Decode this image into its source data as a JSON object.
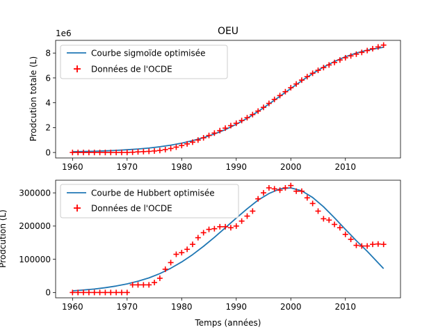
{
  "chart_data": [
    {
      "type": "line",
      "title": "OEU",
      "ylabel": "Prodcution totale (L)",
      "xlabel": "",
      "y_offset_text": "1e6",
      "xlim": [
        1956.9,
        2020.1
      ],
      "ylim": [
        -0.44,
        9.02
      ],
      "x_ticks": [
        1960,
        1970,
        1980,
        1990,
        2000,
        2010
      ],
      "y_ticks": [
        0,
        2,
        4,
        6,
        8
      ],
      "legend": {
        "placement": "top-left",
        "entries": [
          "Courbe sigmoïde optimisée",
          "Données de l'OCDE"
        ]
      },
      "colors": {
        "curve": "#1f77b4",
        "data": "#ff0000"
      },
      "series": [
        {
          "name": "Courbe sigmoïde optimisée",
          "kind": "line",
          "x": [
            1960,
            1962,
            1964,
            1966,
            1968,
            1970,
            1972,
            1974,
            1976,
            1978,
            1980,
            1982,
            1984,
            1986,
            1988,
            1990,
            1992,
            1994,
            1996,
            1998,
            2000,
            2002,
            2004,
            2006,
            2008,
            2010,
            2012,
            2014,
            2017
          ],
          "y": [
            0.06,
            0.08,
            0.1,
            0.13,
            0.17,
            0.22,
            0.28,
            0.36,
            0.46,
            0.59,
            0.75,
            0.95,
            1.19,
            1.49,
            1.84,
            2.27,
            2.75,
            3.3,
            3.9,
            4.52,
            5.15,
            5.77,
            6.35,
            6.87,
            7.32,
            7.7,
            8.0,
            8.23,
            8.47
          ]
        },
        {
          "name": "Données de l'OCDE",
          "kind": "scatter",
          "x": [
            1960,
            1961,
            1962,
            1963,
            1964,
            1965,
            1966,
            1967,
            1968,
            1969,
            1970,
            1971,
            1972,
            1973,
            1974,
            1975,
            1976,
            1977,
            1978,
            1979,
            1980,
            1981,
            1982,
            1983,
            1984,
            1985,
            1986,
            1987,
            1988,
            1989,
            1990,
            1991,
            1992,
            1993,
            1994,
            1995,
            1996,
            1997,
            1998,
            1999,
            2000,
            2001,
            2002,
            2003,
            2004,
            2005,
            2006,
            2007,
            2008,
            2009,
            2010,
            2011,
            2012,
            2013,
            2014,
            2015,
            2016,
            2017
          ],
          "y": [
            0,
            0,
            0,
            0,
            0,
            0,
            0,
            0,
            0,
            0,
            0,
            0.02,
            0.05,
            0.07,
            0.09,
            0.12,
            0.16,
            0.23,
            0.32,
            0.43,
            0.56,
            0.69,
            0.83,
            1.0,
            1.18,
            1.37,
            1.56,
            1.76,
            1.96,
            2.16,
            2.35,
            2.57,
            2.8,
            3.05,
            3.33,
            3.63,
            3.95,
            4.27,
            4.58,
            4.89,
            5.21,
            5.51,
            5.82,
            6.1,
            6.37,
            6.61,
            6.83,
            7.04,
            7.24,
            7.44,
            7.62,
            7.77,
            7.91,
            8.05,
            8.2,
            8.35,
            8.49,
            8.64
          ]
        }
      ]
    },
    {
      "type": "line",
      "title": "",
      "ylabel": "Prodcution (L)",
      "xlabel": "Temps (années)",
      "xlim": [
        1956.9,
        2020.1
      ],
      "ylim": [
        -16000,
        338000
      ],
      "x_ticks": [
        1960,
        1970,
        1980,
        1990,
        2000,
        2010
      ],
      "y_ticks": [
        0,
        100000,
        200000,
        300000
      ],
      "legend": {
        "placement": "top-left",
        "entries": [
          "Courbe de Hubbert optimisée",
          "Données de l'OCDE"
        ]
      },
      "colors": {
        "curve": "#1f77b4",
        "data": "#ff0000"
      },
      "series": [
        {
          "name": "Courbe de Hubbert optimisée",
          "kind": "line",
          "x": [
            1960,
            1962,
            1964,
            1966,
            1968,
            1970,
            1972,
            1974,
            1976,
            1978,
            1980,
            1982,
            1984,
            1986,
            1988,
            1990,
            1992,
            1994,
            1996,
            1998,
            2000,
            2002,
            2004,
            2006,
            2008,
            2010,
            2012,
            2014,
            2017
          ],
          "y": [
            5000,
            7500,
            10500,
            14500,
            19500,
            26000,
            34000,
            44000,
            57000,
            73000,
            92000,
            114000,
            139000,
            166000,
            195000,
            224000,
            252000,
            278000,
            298000,
            312000,
            315000,
            306000,
            286000,
            258000,
            225000,
            190000,
            156000,
            124000,
            72000
          ]
        },
        {
          "name": "Données de l'OCDE",
          "kind": "scatter",
          "x": [
            1960,
            1961,
            1962,
            1963,
            1964,
            1965,
            1966,
            1967,
            1968,
            1969,
            1970,
            1971,
            1972,
            1973,
            1974,
            1975,
            1976,
            1977,
            1978,
            1979,
            1980,
            1981,
            1982,
            1983,
            1984,
            1985,
            1986,
            1987,
            1988,
            1989,
            1990,
            1991,
            1992,
            1993,
            1994,
            1995,
            1996,
            1997,
            1998,
            1999,
            2000,
            2001,
            2002,
            2003,
            2004,
            2005,
            2006,
            2007,
            2008,
            2009,
            2010,
            2011,
            2012,
            2013,
            2014,
            2015,
            2016,
            2017
          ],
          "y": [
            0,
            0,
            0,
            0,
            0,
            0,
            0,
            0,
            0,
            0,
            0,
            23000,
            23000,
            23000,
            23000,
            30000,
            43000,
            70000,
            90000,
            115000,
            120000,
            130000,
            145000,
            165000,
            180000,
            190000,
            192000,
            198000,
            198000,
            195000,
            200000,
            215000,
            230000,
            245000,
            282000,
            300000,
            315000,
            312000,
            308000,
            315000,
            322000,
            305000,
            305000,
            285000,
            268000,
            245000,
            222000,
            218000,
            205000,
            195000,
            175000,
            160000,
            142000,
            140000,
            140000,
            145000,
            146000,
            145000
          ]
        }
      ]
    }
  ]
}
